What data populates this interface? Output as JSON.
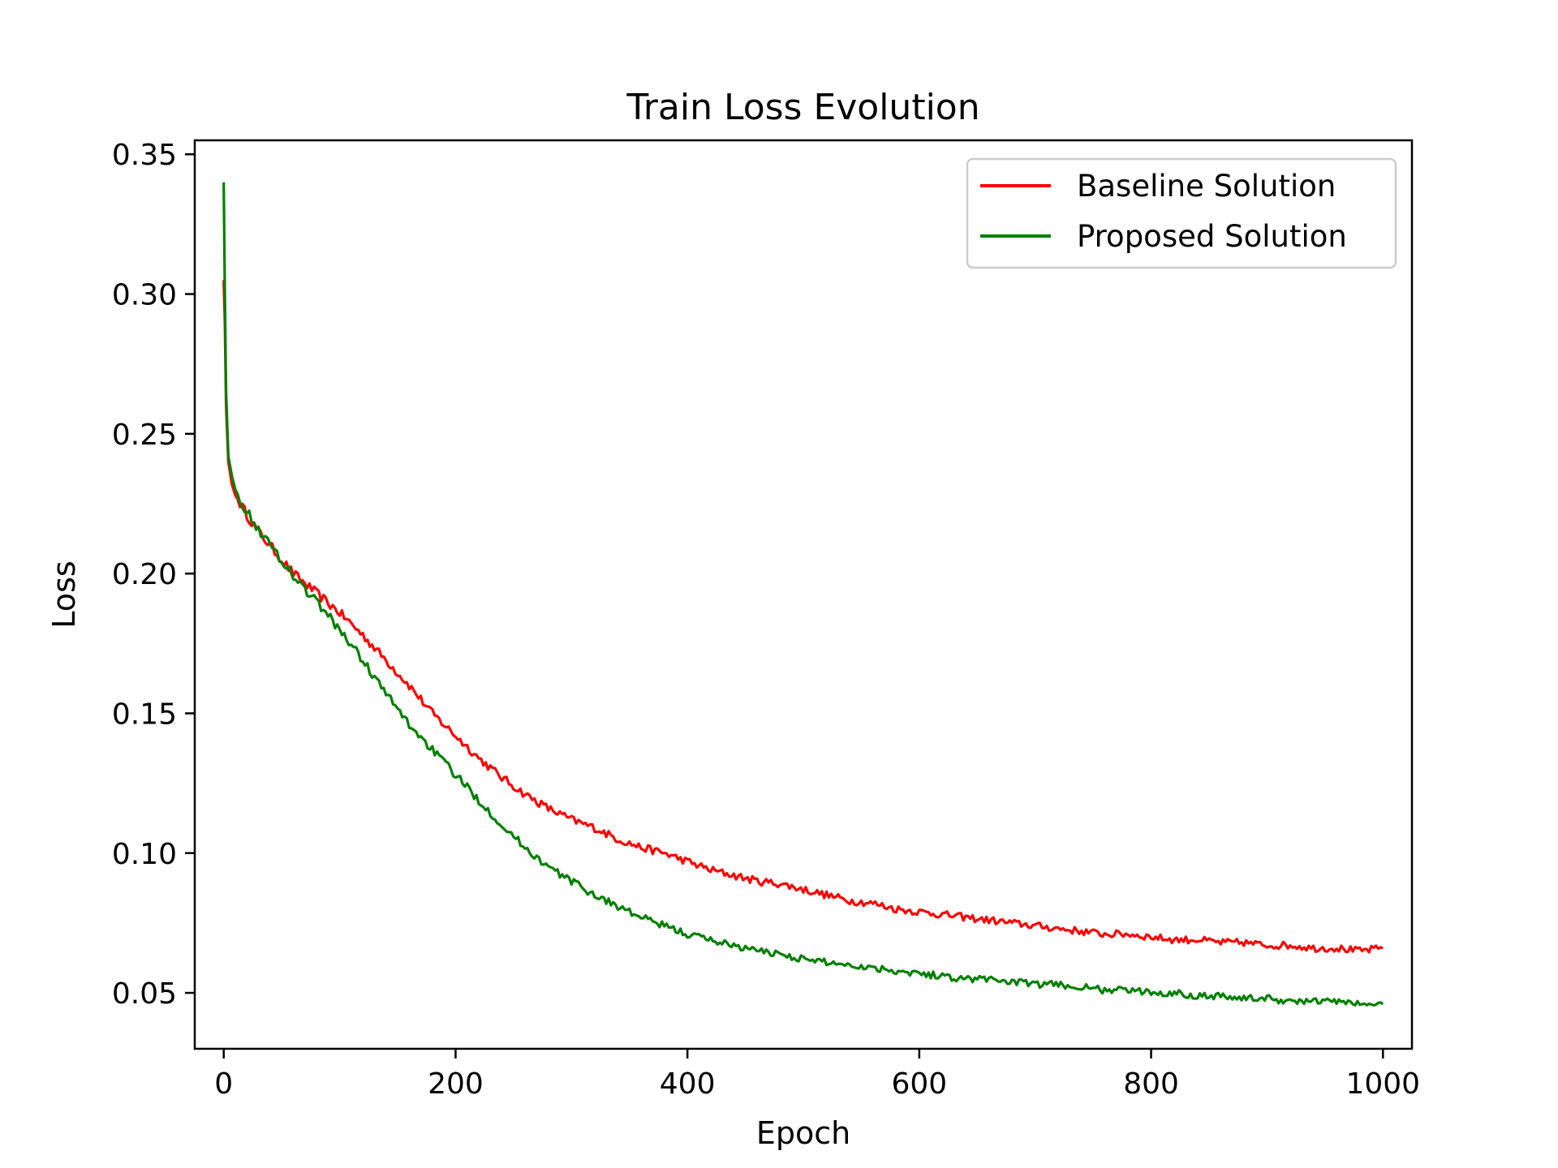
{
  "chart_data": {
    "type": "line",
    "title": "Train Loss Evolution",
    "xlabel": "Epoch",
    "ylabel": "Loss",
    "xlim": [
      -25,
      1025
    ],
    "ylim": [
      0.03,
      0.355
    ],
    "xticks": [
      0,
      200,
      400,
      600,
      800,
      1000
    ],
    "yticks": [
      0.05,
      0.1,
      0.15,
      0.2,
      0.25,
      0.3,
      0.35
    ],
    "xtick_labels": [
      "0",
      "200",
      "400",
      "600",
      "800",
      "1000"
    ],
    "ytick_labels": [
      "0.05",
      "0.10",
      "0.15",
      "0.20",
      "0.25",
      "0.30",
      "0.35"
    ],
    "grid": false,
    "legend": "top-right",
    "series": [
      {
        "name": "Baseline Solution",
        "color": "#ff0000",
        "x": [
          0,
          1,
          2,
          4,
          7,
          10,
          20,
          30,
          40,
          50,
          60,
          80,
          100,
          120,
          140,
          160,
          180,
          200,
          220,
          240,
          260,
          280,
          300,
          320,
          340,
          360,
          380,
          400,
          420,
          440,
          460,
          480,
          500,
          520,
          540,
          560,
          580,
          600,
          620,
          640,
          660,
          680,
          700,
          720,
          740,
          760,
          780,
          800,
          820,
          840,
          860,
          880,
          900,
          920,
          940,
          960,
          980,
          1000
        ],
        "y": [
          0.305,
          0.29,
          0.26,
          0.24,
          0.232,
          0.228,
          0.221,
          0.215,
          0.21,
          0.205,
          0.2,
          0.193,
          0.186,
          0.178,
          0.169,
          0.16,
          0.15,
          0.142,
          0.134,
          0.127,
          0.121,
          0.116,
          0.112,
          0.109,
          0.105,
          0.102,
          0.1,
          0.097,
          0.094,
          0.092,
          0.09,
          0.089,
          0.087,
          0.085,
          0.083,
          0.082,
          0.08,
          0.079,
          0.078,
          0.077,
          0.076,
          0.075,
          0.074,
          0.073,
          0.072,
          0.071,
          0.071,
          0.07,
          0.069,
          0.069,
          0.068,
          0.068,
          0.067,
          0.067,
          0.066,
          0.066,
          0.065,
          0.066
        ]
      },
      {
        "name": "Proposed Solution",
        "color": "#008000",
        "x": [
          0,
          1,
          2,
          4,
          7,
          10,
          20,
          30,
          40,
          50,
          60,
          80,
          100,
          120,
          140,
          160,
          180,
          200,
          220,
          240,
          260,
          280,
          300,
          320,
          340,
          360,
          380,
          400,
          420,
          440,
          460,
          480,
          500,
          520,
          540,
          560,
          580,
          600,
          620,
          640,
          660,
          680,
          700,
          720,
          740,
          760,
          780,
          800,
          820,
          840,
          860,
          880,
          900,
          920,
          940,
          960,
          980,
          1000
        ],
        "y": [
          0.34,
          0.3,
          0.265,
          0.242,
          0.235,
          0.23,
          0.222,
          0.216,
          0.21,
          0.205,
          0.199,
          0.19,
          0.18,
          0.169,
          0.157,
          0.146,
          0.137,
          0.128,
          0.119,
          0.11,
          0.102,
          0.095,
          0.09,
          0.085,
          0.081,
          0.077,
          0.074,
          0.071,
          0.069,
          0.067,
          0.065,
          0.064,
          0.062,
          0.061,
          0.06,
          0.059,
          0.058,
          0.057,
          0.056,
          0.055,
          0.055,
          0.054,
          0.053,
          0.053,
          0.052,
          0.051,
          0.051,
          0.05,
          0.05,
          0.049,
          0.049,
          0.048,
          0.048,
          0.047,
          0.047,
          0.047,
          0.046,
          0.046
        ]
      }
    ]
  }
}
